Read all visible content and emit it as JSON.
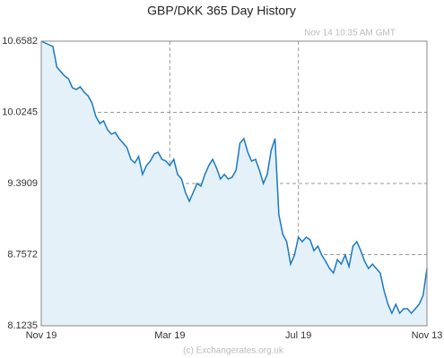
{
  "chart_data": {
    "type": "area",
    "title": "GBP/DKK  365 Day History",
    "annotation": "Nov 14  10:35 AM GMT",
    "footer": "(c) Exchangerates.org.uk",
    "color": "#1a78c2",
    "fill": "#e4f1f9",
    "grid": true,
    "ylim": [
      8.1235,
      10.6582
    ],
    "yticks": [
      8.1235,
      8.7572,
      9.3909,
      10.0245,
      10.6582
    ],
    "categories": [
      "Nov 19",
      null,
      null,
      null,
      null,
      null,
      null,
      null,
      null,
      null,
      null,
      null,
      null,
      null,
      null,
      null,
      null,
      null,
      null,
      null,
      null,
      null,
      null,
      null,
      null,
      null,
      null,
      null,
      null,
      null,
      null,
      null,
      null,
      "Mar 19",
      null,
      null,
      null,
      null,
      null,
      null,
      null,
      null,
      null,
      null,
      null,
      null,
      null,
      null,
      null,
      null,
      null,
      null,
      null,
      null,
      null,
      null,
      null,
      null,
      null,
      null,
      null,
      null,
      null,
      null,
      null,
      null,
      "Jul 19",
      null,
      null,
      null,
      null,
      null,
      null,
      null,
      null,
      null,
      null,
      null,
      null,
      null,
      null,
      null,
      null,
      null,
      null,
      null,
      null,
      null,
      null,
      null,
      null,
      null,
      null,
      null,
      null,
      null,
      null,
      null,
      null,
      "Nov 13"
    ],
    "values": [
      10.658,
      10.642,
      10.626,
      10.61,
      10.427,
      10.387,
      10.347,
      10.323,
      10.244,
      10.228,
      10.252,
      10.204,
      10.172,
      10.109,
      9.989,
      9.925,
      9.949,
      9.87,
      9.83,
      9.845,
      9.79,
      9.75,
      9.71,
      9.606,
      9.574,
      9.63,
      9.471,
      9.55,
      9.59,
      9.654,
      9.67,
      9.606,
      9.59,
      9.55,
      9.606,
      9.471,
      9.431,
      9.311,
      9.232,
      9.311,
      9.391,
      9.367,
      9.471,
      9.55,
      9.606,
      9.526,
      9.431,
      9.471,
      9.431,
      9.447,
      9.51,
      9.75,
      9.79,
      9.67,
      9.59,
      9.606,
      9.51,
      9.391,
      9.471,
      9.686,
      9.79,
      9.112,
      8.937,
      8.873,
      8.673,
      8.753,
      8.913,
      8.873,
      8.913,
      8.889,
      8.793,
      8.833,
      8.753,
      8.697,
      8.634,
      8.594,
      8.713,
      8.673,
      8.753,
      8.65,
      8.833,
      8.873,
      8.793,
      8.697,
      8.634,
      8.673,
      8.634,
      8.594,
      8.434,
      8.315,
      8.235,
      8.315,
      8.235,
      8.275,
      8.275,
      8.235,
      8.275,
      8.315,
      8.394,
      8.634
    ]
  }
}
